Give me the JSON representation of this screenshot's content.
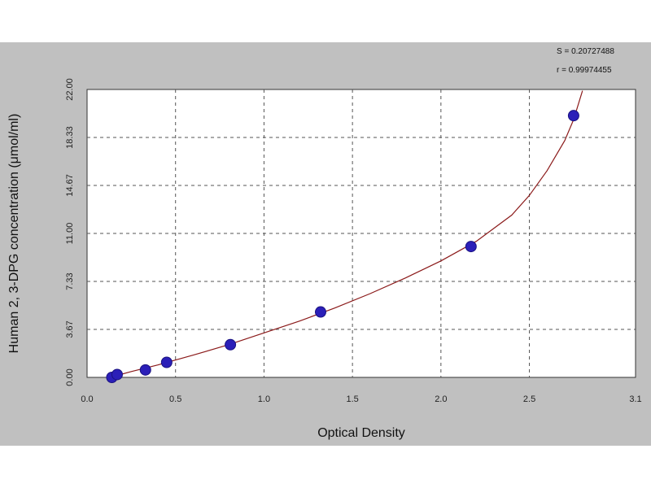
{
  "chart_data": {
    "type": "scatter",
    "title": "",
    "xlabel": "Optical Density",
    "ylabel": "Human 2, 3-DPG concentration (μmol/ml)",
    "xlim": [
      0.0,
      3.1
    ],
    "ylim": [
      0.0,
      22.0
    ],
    "x_ticks": [
      "0.0",
      "0.5",
      "1.0",
      "1.5",
      "2.0",
      "2.5",
      "3.1"
    ],
    "x_tick_values": [
      0.0,
      0.5,
      1.0,
      1.5,
      2.0,
      2.5,
      3.1
    ],
    "y_ticks": [
      "0.00",
      "3.67",
      "7.33",
      "11.00",
      "14.67",
      "18.33",
      "22.00"
    ],
    "y_tick_values": [
      0.0,
      3.67,
      7.33,
      11.0,
      14.67,
      18.33,
      22.0
    ],
    "grid": true,
    "series": [
      {
        "type": "scatter",
        "color": "#2b1fb8",
        "x": [
          0.14,
          0.17,
          0.33,
          0.45,
          0.81,
          1.32,
          2.17,
          2.75
        ],
        "y": [
          0.0,
          0.22,
          0.57,
          1.15,
          2.5,
          5.0,
          10.0,
          20.0
        ]
      },
      {
        "type": "line",
        "color": "#8b1a1a",
        "x": [
          0.13,
          0.25,
          0.4,
          0.6,
          0.8,
          1.0,
          1.2,
          1.4,
          1.6,
          1.8,
          2.0,
          2.2,
          2.4,
          2.5,
          2.6,
          2.7,
          2.75,
          2.8
        ],
        "y": [
          0.0,
          0.45,
          0.95,
          1.7,
          2.5,
          3.4,
          4.3,
          5.3,
          6.4,
          7.6,
          8.9,
          10.4,
          12.4,
          13.9,
          15.8,
          18.1,
          19.7,
          21.9
        ]
      }
    ],
    "annotations": [
      "S = 0.20727488",
      "r = 0.99974455"
    ]
  },
  "colors": {
    "background": "#c0c0c0",
    "plot_area": "#ffffff",
    "grid": "#555555",
    "points": "#2b1fb8",
    "curve": "#8b1a1a"
  }
}
